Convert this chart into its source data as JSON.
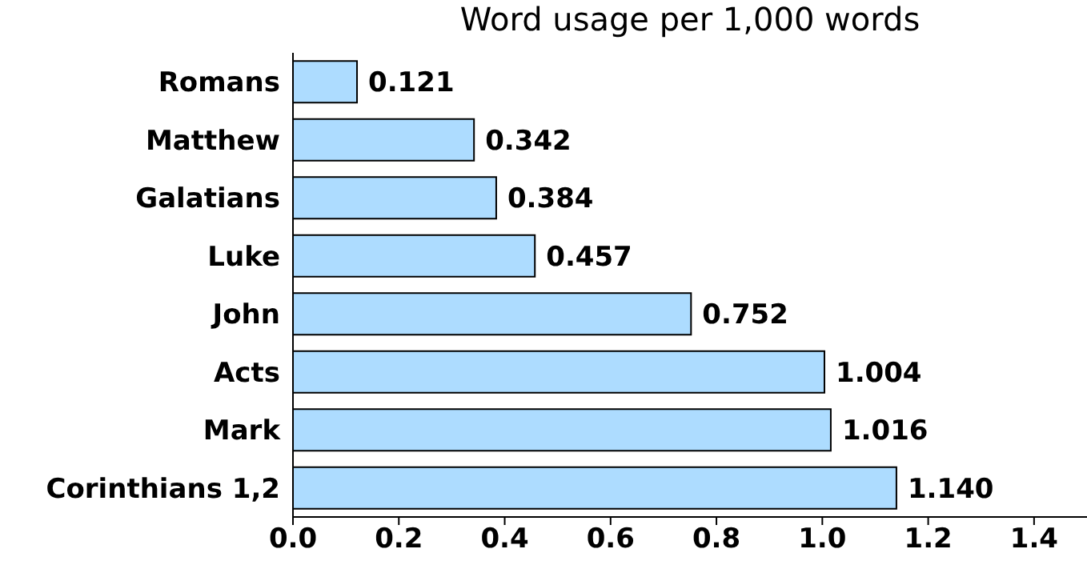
{
  "chart_data": {
    "type": "bar",
    "orientation": "horizontal",
    "title": "Word usage per 1,000 words",
    "categories": [
      "Romans",
      "Matthew",
      "Galatians",
      "Luke",
      "John",
      "Acts",
      "Mark",
      "Corinthians 1,2"
    ],
    "values": [
      0.121,
      0.342,
      0.384,
      0.457,
      0.752,
      1.004,
      1.016,
      1.14
    ],
    "value_labels": [
      "0.121",
      "0.342",
      "0.384",
      "0.457",
      "0.752",
      "1.004",
      "1.016",
      "1.140"
    ],
    "color": "#addcff",
    "xlim": [
      0,
      1.5
    ],
    "xticks": [
      {
        "value": 0,
        "label": "0.0"
      },
      {
        "value": 0.2,
        "label": "0.2"
      },
      {
        "value": 0.4,
        "label": "0.4"
      },
      {
        "value": 0.6,
        "label": "0.6"
      },
      {
        "value": 0.8,
        "label": "0.8"
      },
      {
        "value": 1,
        "label": "1.0"
      },
      {
        "value": 1.2,
        "label": "1.2"
      },
      {
        "value": 1.4,
        "label": "1.4"
      }
    ],
    "grid": false,
    "legend": false
  }
}
